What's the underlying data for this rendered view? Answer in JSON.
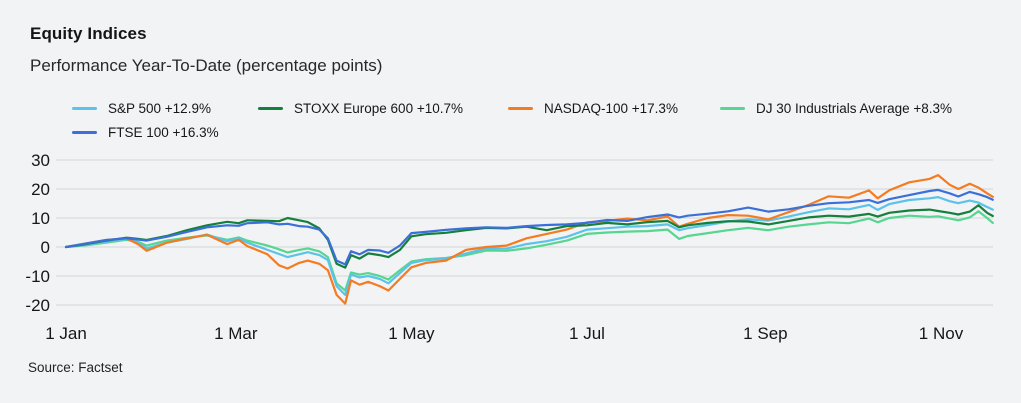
{
  "header": {
    "title": "Equity Indices",
    "subtitle": "Performance Year-To-Date (percentage points)"
  },
  "source_note": "Source: Factset",
  "colors": {
    "background": "#f2f3f5",
    "gridline": "#d9dadd",
    "text": "#15171a"
  },
  "chart_data": {
    "type": "line",
    "title": "Equity Indices",
    "subtitle": "Performance Year-To-Date (percentage points)",
    "grid": "horizontal",
    "legend_position": "top",
    "ylim": [
      -20,
      30
    ],
    "y_ticks": [
      30,
      20,
      10,
      0,
      -10,
      -20
    ],
    "x_unit": "day_of_year",
    "x_range": [
      1,
      323
    ],
    "x_ticks": [
      {
        "day": 1,
        "label": "1 Jan"
      },
      {
        "day": 60,
        "label": "1 Mar"
      },
      {
        "day": 121,
        "label": "1 May"
      },
      {
        "day": 182,
        "label": "1 Jul"
      },
      {
        "day": 244,
        "label": "1 Sep"
      },
      {
        "day": 305,
        "label": "1 Nov"
      }
    ],
    "x": [
      1,
      8,
      15,
      22,
      26,
      29,
      36,
      43,
      50,
      57,
      61,
      64,
      71,
      75,
      78,
      82,
      85,
      89,
      92,
      95,
      98,
      100,
      103,
      106,
      110,
      113,
      117,
      121,
      126,
      133,
      140,
      147,
      154,
      161,
      168,
      175,
      182,
      189,
      196,
      203,
      210,
      214,
      217,
      224,
      231,
      238,
      245,
      252,
      259,
      266,
      273,
      280,
      283,
      287,
      294,
      301,
      304,
      308,
      311,
      315,
      318,
      321,
      323
    ],
    "series": [
      {
        "name": "S&P 500 +12.9%",
        "color": "#5bc2e9",
        "final_value": 12.9,
        "values": [
          0,
          0.8,
          1.8,
          2.8,
          1.5,
          -0.5,
          1.5,
          2.8,
          4.3,
          2.0,
          3.0,
          1.5,
          -1.0,
          -2.4,
          -3.5,
          -2.5,
          -1.8,
          -2.8,
          -4.5,
          -13.5,
          -16.5,
          -9.5,
          -10.5,
          -10.0,
          -11.0,
          -12.5,
          -9.0,
          -5.5,
          -4.5,
          -4.0,
          -2.2,
          -0.5,
          -0.6,
          1.0,
          2.0,
          3.5,
          6.0,
          6.5,
          7.0,
          7.2,
          7.8,
          5.8,
          6.5,
          7.6,
          8.8,
          9.5,
          9.1,
          10.5,
          12.0,
          13.3,
          13.0,
          14.5,
          12.8,
          14.8,
          16.2,
          16.8,
          17.2,
          15.8,
          15.1,
          16.0,
          15.3,
          13.8,
          12.9
        ]
      },
      {
        "name": "FTSE 100 +16.3%",
        "color": "#3b6fd9",
        "final_value": 16.3,
        "values": [
          0,
          1.2,
          2.4,
          3.0,
          2.6,
          2.2,
          3.5,
          5.2,
          6.8,
          7.5,
          7.3,
          8.2,
          8.5,
          7.8,
          8.0,
          7.2,
          7.0,
          6.0,
          3.0,
          -4.7,
          -6.0,
          -1.5,
          -2.5,
          -1.0,
          -1.2,
          -2.0,
          0.5,
          4.8,
          5.2,
          5.9,
          6.4,
          6.8,
          6.6,
          7.2,
          7.6,
          7.8,
          8.3,
          9.3,
          9.0,
          10.3,
          11.2,
          10.2,
          10.8,
          11.5,
          12.3,
          13.6,
          12.2,
          13.0,
          14.2,
          15.1,
          15.4,
          16.2,
          15.2,
          16.5,
          17.9,
          19.3,
          19.7,
          18.5,
          17.4,
          19.0,
          18.2,
          17.2,
          16.3
        ]
      },
      {
        "name": "STOXX Europe 600 +10.7%",
        "color": "#15803c",
        "final_value": 10.7,
        "values": [
          0,
          1.0,
          2.2,
          3.2,
          2.8,
          2.4,
          3.8,
          5.8,
          7.5,
          8.7,
          8.2,
          9.2,
          9.0,
          8.9,
          10.0,
          9.2,
          8.6,
          6.4,
          2.5,
          -5.8,
          -7.1,
          -2.8,
          -4.0,
          -2.2,
          -2.8,
          -3.5,
          -1.0,
          3.7,
          4.4,
          4.9,
          5.8,
          6.6,
          6.4,
          7.0,
          5.8,
          7.2,
          7.5,
          8.3,
          7.8,
          8.6,
          9.0,
          6.8,
          7.5,
          8.3,
          8.9,
          8.8,
          7.8,
          9.0,
          10.2,
          10.8,
          10.5,
          11.4,
          10.5,
          11.8,
          12.6,
          12.9,
          12.4,
          11.8,
          11.2,
          12.2,
          14.4,
          11.8,
          10.7
        ]
      },
      {
        "name": "NASDAQ-100 +17.3%",
        "color": "#f57b20",
        "final_value": 17.3,
        "values": [
          0,
          1.2,
          2.4,
          3.0,
          1.0,
          -1.3,
          1.5,
          3.0,
          4.2,
          1.0,
          2.5,
          0.3,
          -2.5,
          -6.3,
          -7.4,
          -5.5,
          -4.7,
          -5.8,
          -8.0,
          -16.5,
          -19.5,
          -11.5,
          -13.0,
          -12.0,
          -13.5,
          -15.0,
          -11.0,
          -7.0,
          -5.5,
          -4.7,
          -1.0,
          0.0,
          0.5,
          3.0,
          4.5,
          6.0,
          8.5,
          9.0,
          9.8,
          9.2,
          10.5,
          7.0,
          8.0,
          10.0,
          11.0,
          10.8,
          9.5,
          12.0,
          14.5,
          17.5,
          17.0,
          19.5,
          16.8,
          19.5,
          22.3,
          23.5,
          24.8,
          21.5,
          20.0,
          21.8,
          20.5,
          18.5,
          17.3
        ]
      },
      {
        "name": "DJ 30 Industrials Average +8.3%",
        "color": "#56d690",
        "final_value": 8.3,
        "values": [
          0,
          0.6,
          1.5,
          2.5,
          1.8,
          0.5,
          2.2,
          3.2,
          4.0,
          2.5,
          3.3,
          2.2,
          0.5,
          -0.8,
          -1.9,
          -1.0,
          -0.5,
          -1.5,
          -3.5,
          -12.5,
          -15.0,
          -8.8,
          -9.5,
          -9.0,
          -10.0,
          -11.2,
          -8.0,
          -5.0,
          -4.2,
          -3.8,
          -2.8,
          -1.2,
          -1.3,
          -0.5,
          0.8,
          2.2,
          4.5,
          5.0,
          5.3,
          5.5,
          6.0,
          2.8,
          3.8,
          4.8,
          5.8,
          6.6,
          5.8,
          7.0,
          7.8,
          8.5,
          8.2,
          9.8,
          8.5,
          10.0,
          10.8,
          10.4,
          10.6,
          9.8,
          9.2,
          10.2,
          12.3,
          10.0,
          8.3
        ]
      }
    ],
    "legend_order": [
      0,
      2,
      3,
      4,
      1
    ],
    "draw_order": [
      4,
      0,
      3,
      2,
      1
    ],
    "source": "Source: Factset"
  }
}
